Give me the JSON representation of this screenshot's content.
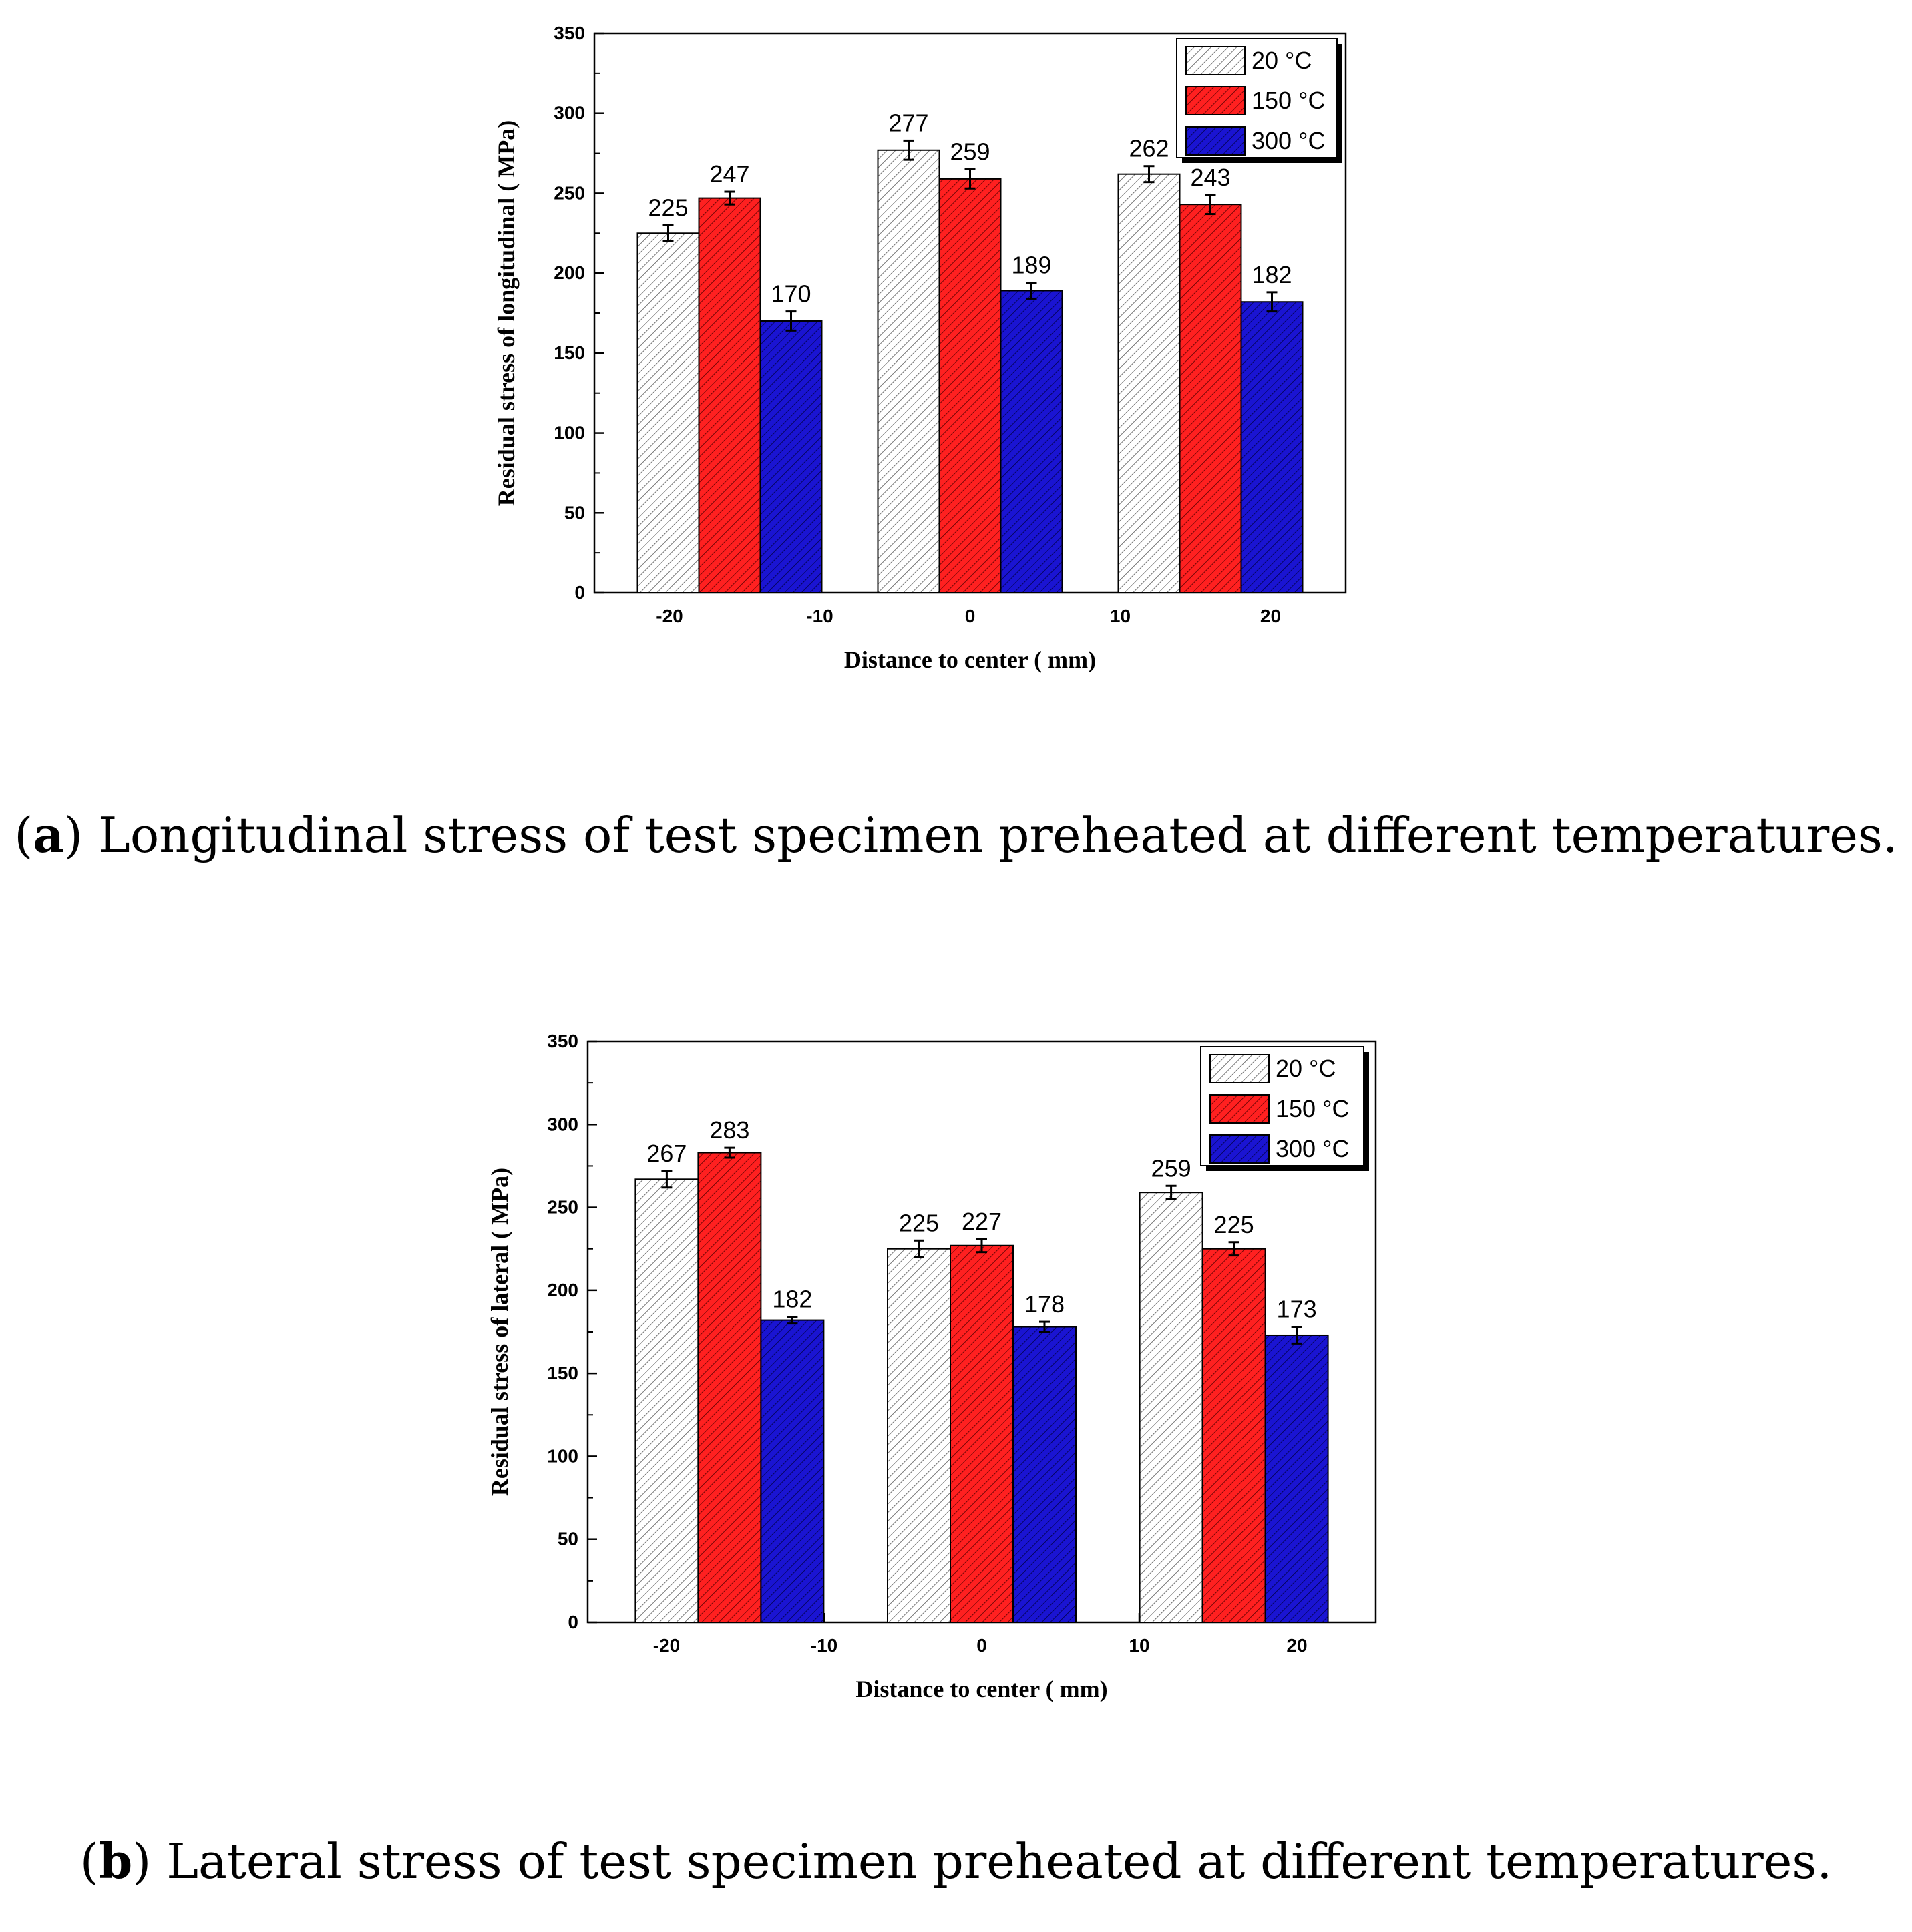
{
  "legend_labels": [
    "20 °C",
    "150 °C",
    "300 °C"
  ],
  "colors": {
    "s20": "#ffffff",
    "s150": "#ff2020",
    "s300": "#1a14d2",
    "axis": "#000000"
  },
  "charts": [
    {
      "letter": "a",
      "caption": "Longitudinal stress of test specimen preheated at different temperatures.",
      "chart_data": {
        "type": "bar",
        "title": "",
        "xlabel": "Distance to center ( mm)",
        "ylabel": "Residual stress of longitudinal ( MPa)",
        "ylim": [
          0,
          350
        ],
        "yticks": [
          "0",
          "50",
          "100",
          "150",
          "200",
          "250",
          "300",
          "350"
        ],
        "xlim": [
          -25,
          25
        ],
        "xticks": [
          "-20",
          "-10",
          "0",
          "10",
          "20"
        ],
        "group_centers": [
          -16,
          0,
          16
        ],
        "legend": [
          "20 °C",
          "150 °C",
          "300 °C"
        ],
        "legend_position": "top-right",
        "series": [
          {
            "name": "20 °C",
            "values": [
              225,
              277,
              262
            ],
            "errors": [
              5,
              6,
              5
            ],
            "labels": [
              "225",
              "277",
              "262"
            ]
          },
          {
            "name": "150 °C",
            "values": [
              247,
              259,
              243
            ],
            "errors": [
              4,
              6,
              6
            ],
            "labels": [
              "247",
              "259",
              "243"
            ]
          },
          {
            "name": "300 °C",
            "values": [
              170,
              189,
              182
            ],
            "errors": [
              6,
              5,
              6
            ],
            "labels": [
              "170",
              "189",
              "182"
            ]
          }
        ]
      }
    },
    {
      "letter": "b",
      "caption": "Lateral stress of test specimen preheated at different temperatures.",
      "chart_data": {
        "type": "bar",
        "title": "",
        "xlabel": "Distance to center ( mm)",
        "ylabel": "Residual stress of lateral ( MPa)",
        "ylim": [
          0,
          350
        ],
        "yticks": [
          "0",
          "50",
          "100",
          "150",
          "200",
          "250",
          "300",
          "350"
        ],
        "xlim": [
          -25,
          25
        ],
        "xticks": [
          "-20",
          "-10",
          "0",
          "10",
          "20"
        ],
        "group_centers": [
          -16,
          0,
          16
        ],
        "legend": [
          "20 °C",
          "150 °C",
          "300 °C"
        ],
        "legend_position": "top-right",
        "series": [
          {
            "name": "20 °C",
            "values": [
              267,
              225,
              259
            ],
            "errors": [
              5,
              5,
              4
            ],
            "labels": [
              "267",
              "225",
              "259"
            ]
          },
          {
            "name": "150 °C",
            "values": [
              283,
              227,
              225
            ],
            "errors": [
              3,
              4,
              4
            ],
            "labels": [
              "283",
              "227",
              "225"
            ]
          },
          {
            "name": "300 °C",
            "values": [
              182,
              178,
              173
            ],
            "errors": [
              2,
              3,
              5
            ],
            "labels": [
              "182",
              "178",
              "173"
            ]
          }
        ]
      }
    }
  ]
}
